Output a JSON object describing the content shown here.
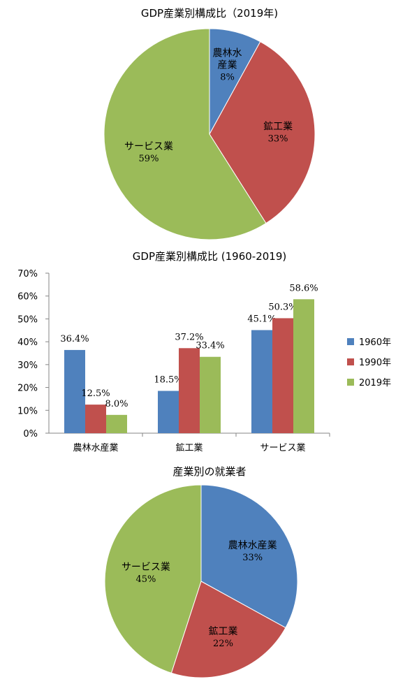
{
  "colors": {
    "agriculture": "#4f81bd",
    "mining_industry": "#c0504d",
    "services": "#9bbb59",
    "axis": "#868686"
  },
  "chart_data": [
    {
      "type": "pie",
      "title": "GDP産業別構成比（2019年)",
      "slices": [
        {
          "label_lines": [
            "農林水",
            "産業"
          ],
          "value": 8,
          "value_label": "8%"
        },
        {
          "label_lines": [
            "鉱工業"
          ],
          "value": 33,
          "value_label": "33%"
        },
        {
          "label_lines": [
            "サービス業"
          ],
          "value": 59,
          "value_label": "59%"
        }
      ]
    },
    {
      "type": "bar",
      "title": "GDP産業別構成比 (1960-2019)",
      "categories": [
        "農林水産業",
        "鉱工業",
        "サービス業"
      ],
      "series": [
        {
          "name": "1960年",
          "values": [
            36.4,
            18.5,
            45.1
          ],
          "value_labels": [
            "36.4%",
            "18.5%",
            "45.1%"
          ]
        },
        {
          "name": "1990年",
          "values": [
            12.5,
            37.2,
            50.3
          ],
          "value_labels": [
            "12.5%",
            "37.2%",
            "50.3%"
          ]
        },
        {
          "name": "2019年",
          "values": [
            8.0,
            33.4,
            58.6
          ],
          "value_labels": [
            "8.0%",
            "33.4%",
            "58.6%"
          ]
        }
      ],
      "ylim": [
        0,
        70
      ],
      "yticks": [
        0,
        10,
        20,
        30,
        40,
        50,
        60,
        70
      ],
      "ytick_labels": [
        "0%",
        "10%",
        "20%",
        "30%",
        "40%",
        "50%",
        "60%",
        "70%"
      ],
      "grid": false,
      "legend": "right"
    },
    {
      "type": "pie",
      "title": "産業別の就業者",
      "slices": [
        {
          "label_lines": [
            "農林水産業"
          ],
          "value": 33,
          "value_label": "33%"
        },
        {
          "label_lines": [
            "鉱工業"
          ],
          "value": 22,
          "value_label": "22%"
        },
        {
          "label_lines": [
            "サービス業"
          ],
          "value": 45,
          "value_label": "45%"
        }
      ]
    }
  ]
}
